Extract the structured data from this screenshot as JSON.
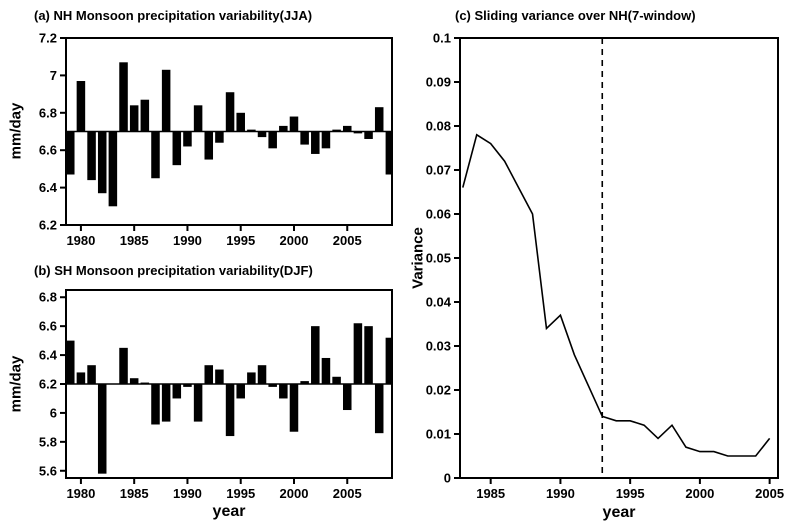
{
  "colors": {
    "background": "#ffffff",
    "ink": "#000000"
  },
  "panels": {
    "a": {
      "title": "(a) NH Monsoon precipitation variability(JJA)",
      "ylabel": "mm/day"
    },
    "b": {
      "title": "(b) SH Monsoon precipitation variability(DJF)",
      "ylabel": "mm/day",
      "xlabel": "year"
    },
    "c": {
      "title": "(c) Sliding variance over NH(7-window)",
      "ylabel": "Variance",
      "xlabel": "year"
    }
  },
  "chart_data": [
    {
      "id": "a",
      "type": "bar",
      "title": "(a) NH Monsoon precipitation variability(JJA)",
      "ylabel": "mm/day",
      "baseline": 6.7,
      "bar_width": 0.8,
      "xlim": [
        1978.6,
        2009.2
      ],
      "ylim": [
        6.2,
        7.2
      ],
      "yticks": [
        6.2,
        6.4,
        6.6,
        6.8,
        7,
        7.2
      ],
      "ytick_labels": [
        "6.2",
        "6.4",
        "6.6",
        "6.8",
        "7",
        "7.2"
      ],
      "xticks": [
        1980,
        1985,
        1990,
        1995,
        2000,
        2005
      ],
      "xtick_labels": [
        "1980",
        "1985",
        "1990",
        "1995",
        "2000",
        "2005"
      ],
      "years": [
        1979,
        1980,
        1981,
        1982,
        1983,
        1984,
        1985,
        1986,
        1987,
        1988,
        1989,
        1990,
        1991,
        1992,
        1993,
        1994,
        1995,
        1996,
        1997,
        1998,
        1999,
        2000,
        2001,
        2002,
        2003,
        2004,
        2005,
        2006,
        2007,
        2008,
        2009
      ],
      "values": [
        6.47,
        6.97,
        6.44,
        6.37,
        6.3,
        7.07,
        6.84,
        6.87,
        6.45,
        7.03,
        6.52,
        6.62,
        6.84,
        6.55,
        6.64,
        6.91,
        6.8,
        6.71,
        6.67,
        6.61,
        6.73,
        6.78,
        6.63,
        6.58,
        6.61,
        6.71,
        6.73,
        6.69,
        6.66,
        6.83,
        6.47
      ],
      "grid": false
    },
    {
      "id": "b",
      "type": "bar",
      "title": "(b) SH Monsoon precipitation variability(DJF)",
      "ylabel": "mm/day",
      "xlabel": "year",
      "baseline": 6.2,
      "bar_width": 0.8,
      "xlim": [
        1978.6,
        2009.2
      ],
      "ylim": [
        5.55,
        6.85
      ],
      "yticks": [
        5.6,
        5.8,
        6,
        6.2,
        6.4,
        6.6,
        6.8
      ],
      "ytick_labels": [
        "5.6",
        "5.8",
        "6",
        "6.2",
        "6.4",
        "6.6",
        "6.8"
      ],
      "xticks": [
        1980,
        1985,
        1990,
        1995,
        2000,
        2005
      ],
      "xtick_labels": [
        "1980",
        "1985",
        "1990",
        "1995",
        "2000",
        "2005"
      ],
      "years": [
        1979,
        1980,
        1981,
        1982,
        1983,
        1984,
        1985,
        1986,
        1987,
        1988,
        1989,
        1990,
        1991,
        1992,
        1993,
        1994,
        1995,
        1996,
        1997,
        1998,
        1999,
        2000,
        2001,
        2002,
        2003,
        2004,
        2005,
        2006,
        2007,
        2008,
        2009
      ],
      "values": [
        6.5,
        6.28,
        6.33,
        5.58,
        6.2,
        6.45,
        6.24,
        6.21,
        5.92,
        5.94,
        6.1,
        6.18,
        5.94,
        6.33,
        6.3,
        5.84,
        6.1,
        6.28,
        6.33,
        6.18,
        6.1,
        5.87,
        6.22,
        6.6,
        6.38,
        6.25,
        6.02,
        6.62,
        6.6,
        5.86,
        6.52
      ],
      "grid": false
    },
    {
      "id": "c",
      "type": "line",
      "title": "(c) Sliding variance over NH(7-window)",
      "ylabel": "Variance",
      "xlabel": "year",
      "xlim": [
        1982.8,
        2005.6
      ],
      "ylim": [
        0,
        0.1
      ],
      "yticks": [
        0,
        0.01,
        0.02,
        0.03,
        0.04,
        0.05,
        0.06,
        0.07,
        0.08,
        0.09,
        0.1
      ],
      "ytick_labels": [
        "0",
        "0.01",
        "0.02",
        "0.03",
        "0.04",
        "0.05",
        "0.06",
        "0.07",
        "0.08",
        "0.09",
        "0.1"
      ],
      "xticks": [
        1985,
        1990,
        1995,
        2000,
        2005
      ],
      "xtick_labels": [
        "1985",
        "1990",
        "1995",
        "2000",
        "2005"
      ],
      "x": [
        1983,
        1984,
        1985,
        1986,
        1987,
        1988,
        1989,
        1990,
        1991,
        1992,
        1993,
        1994,
        1995,
        1996,
        1997,
        1998,
        1999,
        2000,
        2001,
        2002,
        2003,
        2004,
        2005
      ],
      "y": [
        0.066,
        0.078,
        0.076,
        0.072,
        0.066,
        0.06,
        0.034,
        0.037,
        0.028,
        0.021,
        0.014,
        0.013,
        0.013,
        0.012,
        0.009,
        0.012,
        0.007,
        0.006,
        0.006,
        0.005,
        0.005,
        0.005,
        0.009
      ],
      "vline": {
        "x": 1993,
        "style": "dashed"
      },
      "grid": false
    }
  ]
}
